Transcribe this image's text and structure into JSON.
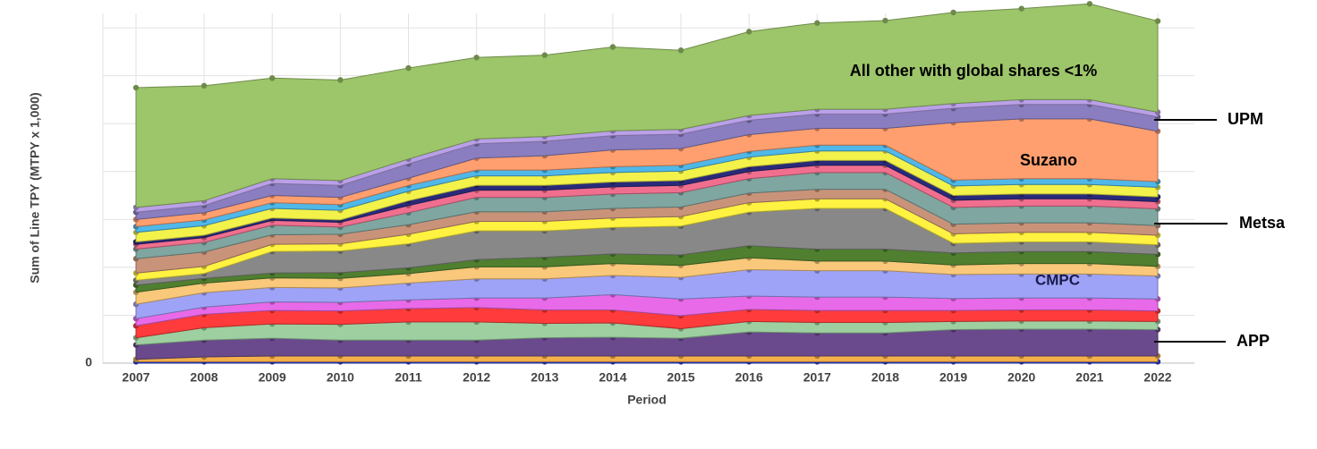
{
  "chart_data": {
    "type": "stacked_area",
    "title_y": "Sum of Line TPY (MTPY x 1,000)",
    "title_x": "Period",
    "categories": [
      "2007",
      "2008",
      "2009",
      "2010",
      "2011",
      "2012",
      "2013",
      "2014",
      "2015",
      "2016",
      "2017",
      "2018",
      "2019",
      "2020",
      "2021",
      "2022"
    ],
    "ylim": [
      0,
      7.3
    ],
    "yticks": [
      0
    ],
    "ygrid": [
      1,
      2,
      3,
      4,
      5,
      6,
      7
    ],
    "grid": true,
    "series": [
      {
        "color": "#2b3cd6",
        "values": [
          0.03,
          0.03,
          0.03,
          0.03,
          0.03,
          0.03,
          0.03,
          0.03,
          0.03,
          0.03,
          0.03,
          0.03,
          0.03,
          0.03,
          0.03,
          0.03
        ]
      },
      {
        "color": "#f5b04a",
        "values": [
          0.05,
          0.1,
          0.12,
          0.12,
          0.12,
          0.12,
          0.12,
          0.12,
          0.12,
          0.12,
          0.12,
          0.12,
          0.12,
          0.12,
          0.12,
          0.12
        ]
      },
      {
        "color": "#6a4a8c",
        "values": [
          0.3,
          0.35,
          0.37,
          0.33,
          0.33,
          0.33,
          0.38,
          0.39,
          0.37,
          0.5,
          0.48,
          0.48,
          0.55,
          0.56,
          0.56,
          0.55
        ]
      },
      {
        "color": "#9dcfa0",
        "values": [
          0.15,
          0.26,
          0.3,
          0.33,
          0.38,
          0.38,
          0.3,
          0.3,
          0.2,
          0.22,
          0.22,
          0.22,
          0.17,
          0.17,
          0.17,
          0.17
        ]
      },
      {
        "color": "#ff3b3b",
        "values": [
          0.25,
          0.28,
          0.28,
          0.28,
          0.28,
          0.3,
          0.28,
          0.27,
          0.27,
          0.25,
          0.25,
          0.25,
          0.23,
          0.23,
          0.23,
          0.22
        ]
      },
      {
        "color": "#e86ae8",
        "values": [
          0.15,
          0.15,
          0.18,
          0.18,
          0.18,
          0.2,
          0.25,
          0.32,
          0.35,
          0.28,
          0.28,
          0.28,
          0.25,
          0.25,
          0.25,
          0.25
        ]
      },
      {
        "color": "#9fa3f7",
        "values": [
          0.3,
          0.3,
          0.3,
          0.3,
          0.35,
          0.4,
          0.4,
          0.4,
          0.45,
          0.55,
          0.55,
          0.55,
          0.5,
          0.5,
          0.5,
          0.48
        ]
      },
      {
        "color": "#f9c87a",
        "values": [
          0.25,
          0.2,
          0.2,
          0.2,
          0.2,
          0.25,
          0.25,
          0.25,
          0.25,
          0.25,
          0.2,
          0.2,
          0.2,
          0.22,
          0.22,
          0.2
        ]
      },
      {
        "color": "#4f7f2f",
        "values": [
          0.15,
          0.1,
          0.1,
          0.12,
          0.12,
          0.15,
          0.2,
          0.2,
          0.22,
          0.25,
          0.25,
          0.25,
          0.25,
          0.25,
          0.25,
          0.25
        ]
      },
      {
        "color": "#888888",
        "values": [
          0.1,
          0.1,
          0.45,
          0.45,
          0.5,
          0.6,
          0.55,
          0.55,
          0.6,
          0.7,
          0.85,
          0.85,
          0.2,
          0.2,
          0.2,
          0.2
        ]
      },
      {
        "color": "#fff240",
        "values": [
          0.15,
          0.15,
          0.15,
          0.15,
          0.2,
          0.2,
          0.2,
          0.2,
          0.2,
          0.2,
          0.2,
          0.2,
          0.2,
          0.2,
          0.2,
          0.2
        ]
      },
      {
        "color": "#c9937a",
        "values": [
          0.3,
          0.3,
          0.2,
          0.2,
          0.2,
          0.2,
          0.2,
          0.2,
          0.2,
          0.2,
          0.2,
          0.2,
          0.2,
          0.2,
          0.2,
          0.2
        ]
      },
      {
        "color": "#7fa6a0",
        "values": [
          0.2,
          0.2,
          0.2,
          0.15,
          0.25,
          0.3,
          0.3,
          0.3,
          0.3,
          0.3,
          0.35,
          0.35,
          0.35,
          0.35,
          0.35,
          0.35
        ]
      },
      {
        "color": "#f06f8f",
        "values": [
          0.1,
          0.1,
          0.1,
          0.1,
          0.15,
          0.15,
          0.15,
          0.15,
          0.15,
          0.15,
          0.15,
          0.15,
          0.15,
          0.15,
          0.15,
          0.15
        ]
      },
      {
        "color": "#2a2a7a",
        "values": [
          0.05,
          0.05,
          0.05,
          0.05,
          0.1,
          0.1,
          0.1,
          0.1,
          0.1,
          0.1,
          0.1,
          0.1,
          0.1,
          0.1,
          0.1,
          0.1
        ]
      },
      {
        "color": "#f2f24a",
        "values": [
          0.2,
          0.2,
          0.2,
          0.2,
          0.2,
          0.2,
          0.2,
          0.2,
          0.2,
          0.2,
          0.2,
          0.2,
          0.2,
          0.2,
          0.2,
          0.2
        ]
      },
      {
        "color": "#4fb8e8",
        "values": [
          0.12,
          0.12,
          0.12,
          0.12,
          0.12,
          0.12,
          0.12,
          0.12,
          0.12,
          0.12,
          0.12,
          0.12,
          0.12,
          0.12,
          0.12,
          0.12
        ]
      },
      {
        "color": "#ff9f6f",
        "values": [
          0.15,
          0.15,
          0.15,
          0.15,
          0.15,
          0.25,
          0.3,
          0.35,
          0.35,
          0.35,
          0.35,
          0.35,
          1.2,
          1.25,
          1.25,
          1.05
        ]
      },
      {
        "color": "#8a7ec0",
        "values": [
          0.15,
          0.15,
          0.25,
          0.25,
          0.3,
          0.3,
          0.3,
          0.3,
          0.3,
          0.3,
          0.3,
          0.3,
          0.3,
          0.3,
          0.3,
          0.3
        ]
      },
      {
        "color": "#b9a0e8",
        "values": [
          0.1,
          0.1,
          0.1,
          0.1,
          0.1,
          0.1,
          0.1,
          0.1,
          0.1,
          0.1,
          0.1,
          0.1,
          0.1,
          0.1,
          0.1,
          0.1
        ]
      },
      {
        "color": "#9dc56a",
        "values": [
          2.5,
          2.4,
          2.1,
          2.1,
          1.9,
          1.7,
          1.7,
          1.75,
          1.65,
          1.75,
          1.8,
          1.85,
          1.9,
          1.9,
          2.0,
          1.9
        ]
      }
    ],
    "annotations": [
      "All other with global shares <1%",
      "Suzano",
      "CMPC",
      "UPM",
      "Metsa",
      "APP"
    ]
  }
}
